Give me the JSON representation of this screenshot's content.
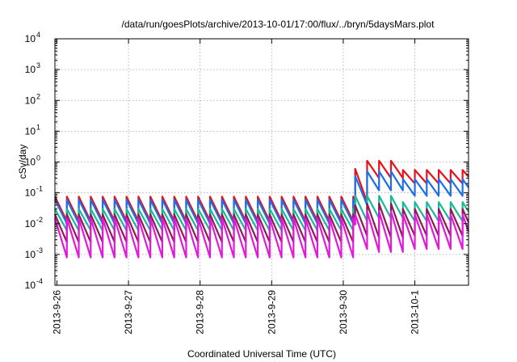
{
  "chart_data": {
    "type": "line",
    "title": "/data/run/goesPlots/archive/2013-10-01/17:00/flux/../bryn/5daysMars.plot",
    "xlabel": "Coordinated Universal Time (UTC)",
    "ylabel": "cSv/day",
    "y_scale": "log",
    "ylim": [
      0.0001,
      10000
    ],
    "xlim": [
      "2013-09-25T23:20",
      "2013-10-01T18:00"
    ],
    "grid": true,
    "legend": "none",
    "x_ticks": [
      {
        "label": "2013-9-26",
        "value": "2013-09-26"
      },
      {
        "label": "2013-9-27",
        "value": "2013-09-27"
      },
      {
        "label": "2013-9-28",
        "value": "2013-09-28"
      },
      {
        "label": "2013-9-29",
        "value": "2013-09-29"
      },
      {
        "label": "2013-9-30",
        "value": "2013-09-30"
      },
      {
        "label": "2013-10-1",
        "value": "2013-10-01"
      }
    ],
    "y_ticks": [
      {
        "base": "10",
        "exp": "-4",
        "value": 0.0001
      },
      {
        "base": "10",
        "exp": "-3",
        "value": 0.001
      },
      {
        "base": "10",
        "exp": "-2",
        "value": 0.01
      },
      {
        "base": "10",
        "exp": "-1",
        "value": 0.1
      },
      {
        "base": "10",
        "exp": "0",
        "value": 1
      },
      {
        "base": "10",
        "exp": "1",
        "value": 10
      },
      {
        "base": "10",
        "exp": "2",
        "value": 100
      },
      {
        "base": "10",
        "exp": "3",
        "value": 1000
      },
      {
        "base": "10",
        "exp": "4",
        "value": 10000
      }
    ],
    "series": [
      {
        "color": "#e8101a",
        "sawtooth_period_hours": 4,
        "segments": [
          {
            "start": "2013-09-25T23:20",
            "end": "2013-09-30T04:00",
            "peak": 0.075,
            "trough": 0.012
          },
          {
            "start": "2013-09-30T04:00",
            "end": "2013-09-30T08:00",
            "peak": 0.6,
            "trough": 0.05
          },
          {
            "start": "2013-09-30T08:00",
            "end": "2013-09-30T20:00",
            "peak": 1.1,
            "trough": 0.3
          },
          {
            "start": "2013-09-30T20:00",
            "end": "2013-10-01T18:00",
            "peak": 0.55,
            "trough": 0.2
          }
        ]
      },
      {
        "color": "#1e6ee6",
        "sawtooth_period_hours": 4,
        "segments": [
          {
            "start": "2013-09-25T23:20",
            "end": "2013-09-30T04:00",
            "peak": 0.06,
            "trough": 0.01
          },
          {
            "start": "2013-09-30T04:00",
            "end": "2013-09-30T08:00",
            "peak": 0.35,
            "trough": 0.04
          },
          {
            "start": "2013-09-30T08:00",
            "end": "2013-09-30T20:00",
            "peak": 0.5,
            "trough": 0.12
          },
          {
            "start": "2013-09-30T20:00",
            "end": "2013-10-01T18:00",
            "peak": 0.28,
            "trough": 0.08
          }
        ]
      },
      {
        "color": "#1ab89a",
        "sawtooth_period_hours": 4,
        "segments": [
          {
            "start": "2013-09-25T23:20",
            "end": "2013-09-30T04:00",
            "peak": 0.03,
            "trough": 0.006
          },
          {
            "start": "2013-09-30T04:00",
            "end": "2013-09-30T08:00",
            "peak": 0.08,
            "trough": 0.012
          },
          {
            "start": "2013-09-30T08:00",
            "end": "2013-09-30T20:00",
            "peak": 0.08,
            "trough": 0.015
          },
          {
            "start": "2013-09-30T20:00",
            "end": "2013-10-01T18:00",
            "peak": 0.05,
            "trough": 0.012
          }
        ]
      },
      {
        "color": "#8a1c52",
        "sawtooth_period_hours": 4,
        "segments": [
          {
            "start": "2013-09-25T23:20",
            "end": "2013-09-30T04:00",
            "peak": 0.02,
            "trough": 0.0025
          },
          {
            "start": "2013-09-30T04:00",
            "end": "2013-09-30T08:00",
            "peak": 0.04,
            "trough": 0.004
          },
          {
            "start": "2013-09-30T08:00",
            "end": "2013-09-30T20:00",
            "peak": 0.045,
            "trough": 0.0035
          },
          {
            "start": "2013-09-30T20:00",
            "end": "2013-10-01T18:00",
            "peak": 0.03,
            "trough": 0.004
          }
        ]
      },
      {
        "color": "#e01ad8",
        "sawtooth_period_hours": 4,
        "segments": [
          {
            "start": "2013-09-25T23:20",
            "end": "2013-09-30T04:00",
            "peak": 0.015,
            "trough": 0.0008
          },
          {
            "start": "2013-09-30T04:00",
            "end": "2013-09-30T08:00",
            "peak": 0.02,
            "trough": 0.0015
          },
          {
            "start": "2013-09-30T08:00",
            "end": "2013-09-30T20:00",
            "peak": 0.025,
            "trough": 0.0012
          },
          {
            "start": "2013-09-30T20:00",
            "end": "2013-10-01T18:00",
            "peak": 0.02,
            "trough": 0.0015
          }
        ]
      }
    ]
  }
}
